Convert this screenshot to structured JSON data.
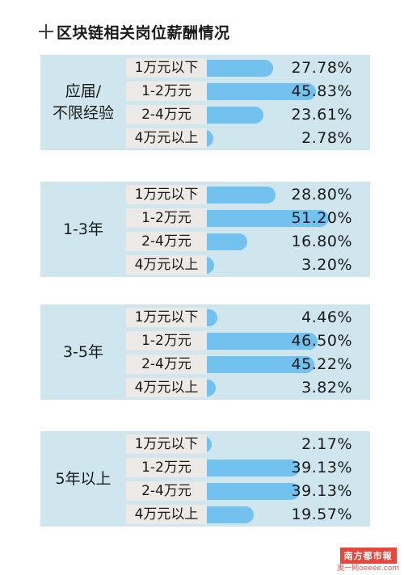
{
  "chart_data": {
    "type": "bar",
    "title": "区块链相关岗位薪酬情况",
    "unit": "%",
    "categories": [
      "1万元以下",
      "1-2万元",
      "2-4万元",
      "4万元以上"
    ],
    "groups": [
      {
        "name": "应届/\n不限经验",
        "values": [
          27.78,
          45.83,
          23.61,
          2.78
        ],
        "labels": [
          "27.78%",
          "45.83%",
          "23.61%",
          "2.78%"
        ]
      },
      {
        "name": "1-3年",
        "values": [
          28.8,
          51.2,
          16.8,
          3.2
        ],
        "labels": [
          "28.80%",
          "51.20%",
          "16.80%",
          "3.20%"
        ]
      },
      {
        "name": "3-5年",
        "values": [
          4.46,
          46.5,
          45.22,
          3.82
        ],
        "labels": [
          "4.46%",
          "46.50%",
          "45.22%",
          "3.82%"
        ]
      },
      {
        "name": "5年以上",
        "values": [
          2.17,
          39.13,
          39.13,
          19.57
        ],
        "labels": [
          "2.17%",
          "39.13%",
          "39.13%",
          "19.57%"
        ]
      }
    ],
    "bar_color": "#72c1ee",
    "panel_color": "#cfe6ee",
    "label_bg_color": "#ece9e6"
  },
  "watermark": {
    "logo": "南方都市報",
    "sub": "奥一网oeeee.com"
  }
}
